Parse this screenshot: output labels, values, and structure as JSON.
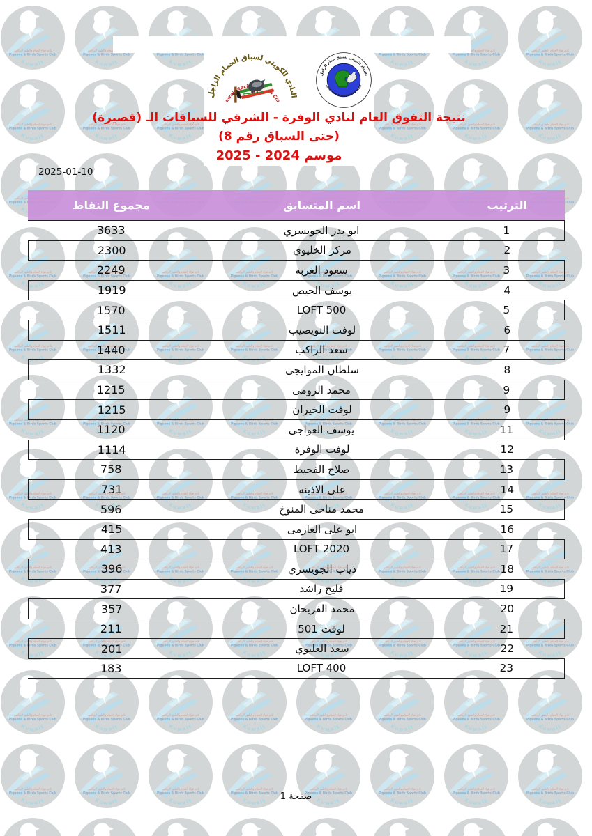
{
  "page": {
    "date": "2025-01-10",
    "footer_page_label": "صفحة 1"
  },
  "header": {
    "title_line1": "نتيجة التفوق العام لنادي الوفرة - الشرقي للسباقات الـ (قصيرة)",
    "title_line2": "(حتى السباق رقم 8)",
    "title_line3": "موسم 2024 - 2025",
    "club_logo": {
      "arc_text": "النادي الكويتي لسباق الحمام الزاجل",
      "script_text": "Kuwait Racing Pigeon Club"
    },
    "federation_logo": {
      "arc_text_top": "الاتحاد الكويتي لسباق حمام الزاجل",
      "arc_text_bottom": "KUWAIT FEDERATION FOR RACING PIGEON"
    }
  },
  "watermark": {
    "line_red": "نادي هواة الحمام والطيور الرياضي",
    "line_blue": "Pigeons & Birds Sports Club",
    "bottom_word": "Kuwait"
  },
  "colors": {
    "title_red": "#dd1010",
    "header_purple": "#c98fd9",
    "border_dark": "#1f1f1f",
    "watermark_gray": "#d2d6d6"
  },
  "table": {
    "columns": [
      "مجموع النقاط",
      "اسم المتسابق",
      "الترتيب"
    ],
    "rows": [
      {
        "rank": "1",
        "name": "ابو بدر الجويسري",
        "points": "3633"
      },
      {
        "rank": "2",
        "name": "مركز الخليوي",
        "points": "2300"
      },
      {
        "rank": "3",
        "name": "سعود الغربه",
        "points": "2249"
      },
      {
        "rank": "4",
        "name": "يوسف الحيص",
        "points": "1919"
      },
      {
        "rank": "5",
        "name": "LOFT 500",
        "points": "1570"
      },
      {
        "rank": "6",
        "name": "لوفت النويصيب",
        "points": "1511"
      },
      {
        "rank": "7",
        "name": "سعد الراكب",
        "points": "1440"
      },
      {
        "rank": "8",
        "name": "سلطان الموايجى",
        "points": "1332"
      },
      {
        "rank": "9",
        "name": "محمد الرومى",
        "points": "1215"
      },
      {
        "rank": "9",
        "name": "لوفت الخيران",
        "points": "1215"
      },
      {
        "rank": "11",
        "name": "يوسف العواجى",
        "points": "1120"
      },
      {
        "rank": "12",
        "name": "لوفت الوفرة",
        "points": "1114"
      },
      {
        "rank": "13",
        "name": "صلاح الفحيط",
        "points": "758"
      },
      {
        "rank": "14",
        "name": "على الاذينه",
        "points": "731"
      },
      {
        "rank": "15",
        "name": "محمد مناحى المنوخ",
        "points": "596"
      },
      {
        "rank": "16",
        "name": "ابو على العازمى",
        "points": "415"
      },
      {
        "rank": "17",
        "name": "LOFT 2020",
        "points": "413"
      },
      {
        "rank": "18",
        "name": "ذياب الجويسري",
        "points": "396"
      },
      {
        "rank": "19",
        "name": "فليح راشد",
        "points": "377"
      },
      {
        "rank": "20",
        "name": "محمد الفريحان",
        "points": "357"
      },
      {
        "rank": "21",
        "name": "لوفت 501",
        "points": "211"
      },
      {
        "rank": "22",
        "name": "سعد العليوي",
        "points": "201"
      },
      {
        "rank": "23",
        "name": "LOFT 400",
        "points": "183"
      }
    ]
  }
}
